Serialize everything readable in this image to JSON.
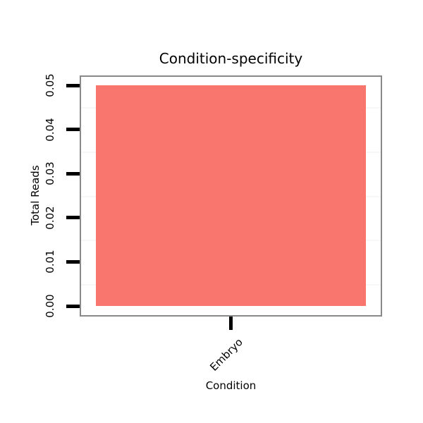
{
  "chart_data": {
    "type": "bar",
    "title": "Condition-specificity",
    "xlabel": "Condition",
    "ylabel": "Total Reads",
    "categories": [
      "Embryo"
    ],
    "values": [
      0.05
    ],
    "ylim": [
      0,
      0.05
    ],
    "yticks": [
      {
        "value": 0.0,
        "label": "0.00"
      },
      {
        "value": 0.01,
        "label": "0.01"
      },
      {
        "value": 0.02,
        "label": "0.02"
      },
      {
        "value": 0.03,
        "label": "0.03"
      },
      {
        "value": 0.04,
        "label": "0.04"
      },
      {
        "value": 0.05,
        "label": "0.05"
      }
    ],
    "grid": "minor-horizontal-only",
    "legend_position": "none",
    "colors": {
      "bar_fill": "#F8766D",
      "panel_border": "#898989",
      "axis_tick": "#000000",
      "grid_minor": "#f7f7f7",
      "text": "#000000",
      "background": "#ffffff"
    }
  }
}
